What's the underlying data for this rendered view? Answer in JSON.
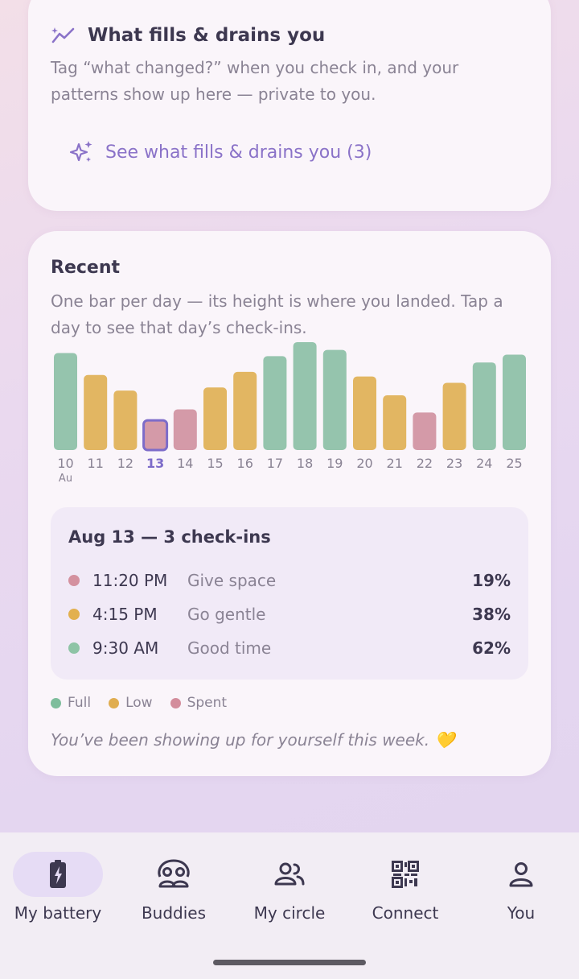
{
  "fills_card": {
    "title": "What fills & drains you",
    "description": "Tag “what changed?” when you check in, and your patterns show up here — private to you.",
    "link_label": "See what fills & drains you (3)",
    "icon": "trend-sparkle-icon"
  },
  "recent_card": {
    "title": "Recent",
    "description": "One bar per day — its height is where you landed. Tap a day to see that day’s check-ins.",
    "month_label": "Au",
    "selected_day": "13"
  },
  "chart_data": {
    "type": "bar",
    "categories": [
      "10",
      "11",
      "12",
      "13",
      "14",
      "15",
      "16",
      "17",
      "18",
      "19",
      "20",
      "21",
      "22",
      "23",
      "24",
      "25"
    ],
    "values": [
      62,
      48,
      38,
      19,
      26,
      40,
      50,
      60,
      69,
      64,
      47,
      35,
      24,
      43,
      56,
      61
    ],
    "levels": [
      "Full",
      "Low",
      "Low",
      "Spent",
      "Spent",
      "Low",
      "Low",
      "Full",
      "Full",
      "Full",
      "Low",
      "Low",
      "Spent",
      "Low",
      "Full",
      "Full"
    ],
    "ylim": [
      0,
      100
    ],
    "colors": {
      "Full": "#95c4ad",
      "Low": "#e2b662",
      "Spent": "#d49aa8",
      "selected_outline": "#7d6cc9"
    }
  },
  "detail": {
    "title": "Aug 13 — 3 check-ins",
    "checkins": [
      {
        "time": "11:20 PM",
        "label": "Give space",
        "pct": "19%",
        "color": "#d4919f"
      },
      {
        "time": "4:15 PM",
        "label": "Go gentle",
        "pct": "38%",
        "color": "#e2b04f"
      },
      {
        "time": "9:30 AM",
        "label": "Good time",
        "pct": "62%",
        "color": "#8ec4a6"
      }
    ]
  },
  "legend": [
    {
      "label": "Full",
      "color": "#7ebd9c"
    },
    {
      "label": "Low",
      "color": "#e0ad50"
    },
    {
      "label": "Spent",
      "color": "#d38d9c"
    }
  ],
  "encouragement": "You’ve been showing up for yourself this week. 💛",
  "nav": [
    {
      "label": "My battery",
      "icon": "battery-icon",
      "active": true
    },
    {
      "label": "Buddies",
      "icon": "buddies-icon",
      "active": false
    },
    {
      "label": "My circle",
      "icon": "circle-people-icon",
      "active": false
    },
    {
      "label": "Connect",
      "icon": "qr-code-icon",
      "active": false
    },
    {
      "label": "You",
      "icon": "profile-icon",
      "active": false
    }
  ]
}
